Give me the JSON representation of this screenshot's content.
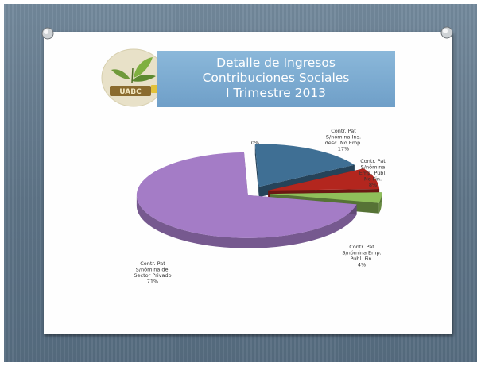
{
  "slide": {
    "title_lines": [
      "Detalle de Ingresos",
      "Contribuciones Sociales",
      "I Trimestre 2013"
    ]
  },
  "logo": {
    "text": "UABC"
  },
  "chart_data": {
    "type": "pie",
    "labels": [
      "Contr. Pat S/nómina Ins. desc. No Emp.",
      "Contr. Pat S/nómina Emp. Públ. No Fin.",
      "Contr. Pat S/nómina Emp. Públ. Fin.",
      "Contr. Pat S/nómina del Sector Privado",
      ""
    ],
    "values": [
      17,
      8,
      4,
      71,
      0
    ],
    "percent_labels": [
      "17%",
      "8%",
      "4%",
      "71%",
      "0%"
    ],
    "colors": [
      "#3f6f94",
      "#b3261e",
      "#8fbf5a",
      "#a47cc6",
      "#8a8a8a"
    ],
    "style": "3d-exploded"
  }
}
